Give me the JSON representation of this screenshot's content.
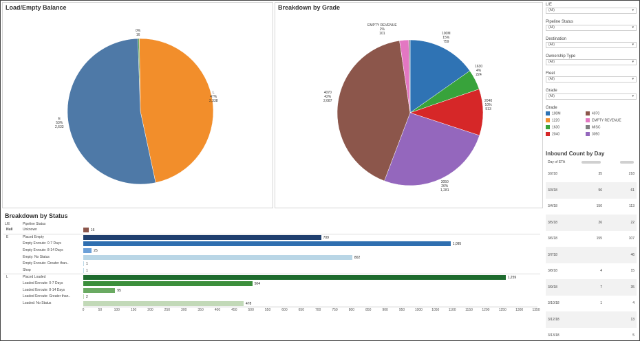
{
  "load_empty": {
    "title": "Load/Empty Balance",
    "chart_data": {
      "type": "pie",
      "title": "Load/Empty Balance",
      "slices": [
        {
          "label": "0%",
          "count": "16",
          "value": 16,
          "color": "#59a14f"
        },
        {
          "label": "L",
          "pct": "47%",
          "count": "2,338",
          "value": 2338,
          "color": "#f28e2b"
        },
        {
          "label": "E",
          "pct": "53%",
          "count": "2,633",
          "value": 2633,
          "color": "#4e79a7"
        }
      ]
    }
  },
  "grade": {
    "title": "Breakdown by Grade",
    "chart_data": {
      "type": "pie",
      "title": "Breakdown by Grade",
      "slices": [
        {
          "label": "100M",
          "pct": "15%",
          "count": "759",
          "value": 759,
          "color": "#2f73b4"
        },
        {
          "label": "1630",
          "pct": "4%",
          "count": "224",
          "value": 224,
          "color": "#38a33b"
        },
        {
          "label": "2040",
          "pct": "10%",
          "count": "513",
          "value": 513,
          "color": "#d62728"
        },
        {
          "label": "3050",
          "pct": "26%",
          "count": "1,281",
          "value": 1281,
          "color": "#9467bd"
        },
        {
          "label": "4070",
          "pct": "42%",
          "count": "2,087",
          "value": 2087,
          "color": "#8c564b"
        },
        {
          "label": "EMPTY REVENUE",
          "pct": "2%",
          "count": "101",
          "value": 101,
          "color": "#e377c2"
        },
        {
          "label": "MISC",
          "pct": "",
          "count": "",
          "value": 15,
          "color": "#7f7f7f"
        }
      ]
    }
  },
  "status": {
    "title": "Breakdown by Status",
    "col_le": "L/E",
    "col_pipeline": "Pipeline Status",
    "chart_data": {
      "type": "bar",
      "title": "Breakdown by Status",
      "xlim": [
        0,
        1350
      ],
      "ticks": [
        0,
        50,
        100,
        150,
        200,
        250,
        300,
        350,
        400,
        450,
        500,
        550,
        600,
        650,
        700,
        750,
        800,
        850,
        900,
        950,
        1000,
        1050,
        1100,
        1150,
        1200,
        1250,
        1300,
        1350
      ],
      "rows": [
        {
          "group": "Null",
          "label": "Unknown",
          "value": 16,
          "display": "16",
          "color": "#8c564b"
        },
        {
          "group": "E",
          "label": "Placed Empty",
          "value": 709,
          "display": "709",
          "color": "#1f3f6e"
        },
        {
          "group": "",
          "label": "Empty Enroute: 0-7 Days",
          "value": 1095,
          "display": "1,095",
          "color": "#2f6fb0"
        },
        {
          "group": "",
          "label": "Empty Enroute: 8-14 Days",
          "value": 25,
          "display": "25",
          "color": "#6ca0d8"
        },
        {
          "group": "",
          "label": "Empty: No Status",
          "value": 802,
          "display": "802",
          "color": "#b9d6e6"
        },
        {
          "group": "",
          "label": "Empty Enroute: Greater than..",
          "value": 1,
          "display": "1",
          "color": "#b9d6e6"
        },
        {
          "group": "",
          "label": "Shop",
          "value": 1,
          "display": "1",
          "color": "#b9d6e6"
        },
        {
          "group": "L",
          "label": "Placed Loaded",
          "value": 1259,
          "display": "1,259",
          "color": "#1e6b2e"
        },
        {
          "group": "",
          "label": "Loaded Enroute: 0-7 Days",
          "value": 504,
          "display": "504",
          "color": "#3c8f3c"
        },
        {
          "group": "",
          "label": "Loaded Enroute: 8-14 Days",
          "value": 95,
          "display": "95",
          "color": "#6aaa62"
        },
        {
          "group": "",
          "label": "Loaded Enroute: Greater than..",
          "value": 2,
          "display": "2",
          "color": "#bcd9b4"
        },
        {
          "group": "",
          "label": "Loaded: No Status",
          "value": 478,
          "display": "478",
          "color": "#c2d9b8"
        }
      ]
    }
  },
  "filters": [
    {
      "label": "L/E",
      "value": "(All)"
    },
    {
      "label": "Pipeline Status",
      "value": "(All)"
    },
    {
      "label": "Destination",
      "value": "(All)"
    },
    {
      "label": "Ownership Type",
      "value": "(All)"
    },
    {
      "label": "Fleet",
      "value": "(All)"
    },
    {
      "label": "Grade",
      "value": "(All)"
    }
  ],
  "caret": "▾",
  "grade_legend": {
    "title": "Grade",
    "items": [
      {
        "label": "100M",
        "color": "#2f73b4"
      },
      {
        "label": "4070",
        "color": "#8c564b"
      },
      {
        "label": "1220",
        "color": "#f28e2b"
      },
      {
        "label": "EMPTY REVENUE",
        "color": "#e377c2"
      },
      {
        "label": "1630",
        "color": "#38a33b"
      },
      {
        "label": "MISC",
        "color": "#7f7f7f"
      },
      {
        "label": "2040",
        "color": "#d62728"
      },
      {
        "label": "3050",
        "color": "#9467bd"
      }
    ]
  },
  "inbound": {
    "title": "Inbound Count by Day",
    "head": "Day of ETA",
    "rows": [
      {
        "day": "3/2/18",
        "a": "35",
        "b": "218"
      },
      {
        "day": "3/3/18",
        "a": "56",
        "b": "61"
      },
      {
        "day": "3/4/18",
        "a": "150",
        "b": "113"
      },
      {
        "day": "3/5/18",
        "a": "26",
        "b": "22"
      },
      {
        "day": "3/6/18",
        "a": "155",
        "b": "107"
      },
      {
        "day": "3/7/18",
        "a": "",
        "b": "46"
      },
      {
        "day": "3/8/18",
        "a": "4",
        "b": "15"
      },
      {
        "day": "3/9/18",
        "a": "7",
        "b": "35"
      },
      {
        "day": "3/10/18",
        "a": "1",
        "b": "4"
      },
      {
        "day": "3/12/18",
        "a": "",
        "b": "13"
      },
      {
        "day": "3/13/18",
        "a": "",
        "b": "5"
      }
    ]
  }
}
